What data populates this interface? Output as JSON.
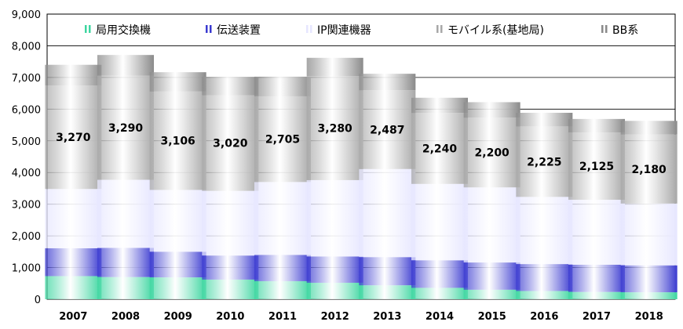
{
  "chart_data": {
    "type": "bar",
    "stacked": true,
    "categories": [
      "2007",
      "2008",
      "2009",
      "2010",
      "2011",
      "2012",
      "2013",
      "2014",
      "2015",
      "2016",
      "2017",
      "2018"
    ],
    "series": [
      {
        "name": "局用交換機",
        "color": "#3dd6a0",
        "values": [
          730,
          700,
          690,
          620,
          570,
          520,
          440,
          360,
          300,
          260,
          230,
          220
        ]
      },
      {
        "name": "伝送装置",
        "color": "#3a3ad0",
        "values": [
          880,
          920,
          810,
          760,
          830,
          830,
          890,
          870,
          860,
          850,
          860,
          850
        ]
      },
      {
        "name": "IP関連機器",
        "color": "#e6e6ff",
        "values": [
          1870,
          2150,
          1950,
          2040,
          2300,
          2410,
          2780,
          2410,
          2370,
          2120,
          2050,
          1950
        ]
      },
      {
        "name": "モバイル系(基地局)",
        "color": "#a8a8a8",
        "values": [
          3270,
          3290,
          3106,
          3020,
          2705,
          3280,
          2487,
          2240,
          2200,
          2225,
          2125,
          2180
        ]
      },
      {
        "name": "BB系",
        "color": "#8a8a8a",
        "values": [
          650,
          650,
          610,
          580,
          620,
          580,
          520,
          480,
          490,
          430,
          425,
          430
        ]
      }
    ],
    "data_labels": [
      "3,270",
      "3,290",
      "3,106",
      "3,020",
      "2,705",
      "3,280",
      "2,487",
      "2,240",
      "2,200",
      "2,225",
      "2,125",
      "2,180"
    ],
    "ylim": [
      0,
      9000
    ],
    "yticks": [
      "0",
      "1,000",
      "2,000",
      "3,000",
      "4,000",
      "5,000",
      "6,000",
      "7,000",
      "8,000",
      "9,000"
    ],
    "grid": true,
    "legend_position": "top"
  }
}
